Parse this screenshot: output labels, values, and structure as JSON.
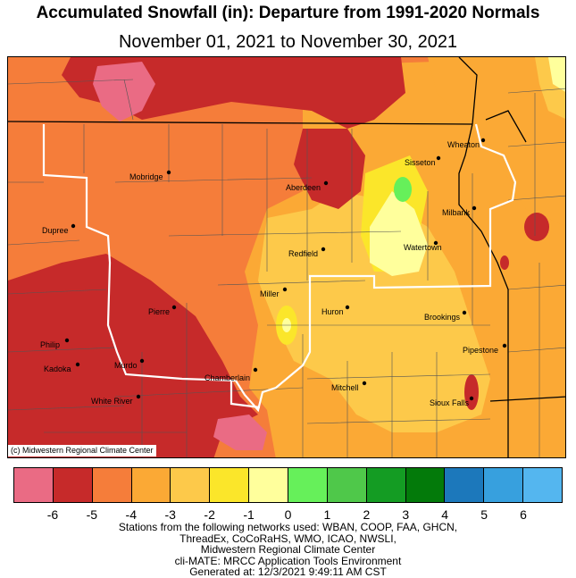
{
  "title": "Accumulated Snowfall (in): Departure from 1991-2020 Normals",
  "subtitle": "November 01, 2021 to November 30, 2021",
  "credit": "(c) Midwestern Regional Climate Center",
  "cities": [
    {
      "name": "Wheaton"
    },
    {
      "name": "Sisseton"
    },
    {
      "name": "Mobridge"
    },
    {
      "name": "Aberdeen"
    },
    {
      "name": "Milbank"
    },
    {
      "name": "Dupree"
    },
    {
      "name": "Redfield"
    },
    {
      "name": "Watertown"
    },
    {
      "name": "Miller"
    },
    {
      "name": "Huron"
    },
    {
      "name": "Pierre"
    },
    {
      "name": "Brookings"
    },
    {
      "name": "Philip"
    },
    {
      "name": "Pipestone"
    },
    {
      "name": "Murdo"
    },
    {
      "name": "Kadoka"
    },
    {
      "name": "Chamberlain"
    },
    {
      "name": "Mitchell"
    },
    {
      "name": "White River"
    },
    {
      "name": "Sioux Falls"
    }
  ],
  "legend": {
    "colors": [
      "#ea6b84",
      "#c62a2a",
      "#f57d3a",
      "#fba935",
      "#fdc94a",
      "#fbe62a",
      "#ffff9c",
      "#66f05a",
      "#4fc84a",
      "#149c23",
      "#037a0a",
      "#1c78bb",
      "#37a0de",
      "#54b6ef"
    ],
    "ticks": [
      "-6",
      "-5",
      "-4",
      "-3",
      "-2",
      "-1",
      "0",
      "1",
      "2",
      "3",
      "4",
      "5",
      "6"
    ]
  },
  "footer": {
    "line1": "Stations from the following networks used: WBAN, COOP, FAA, GHCN,",
    "line2": "ThreadEx, CoCoRaHS, WMO, ICAO, NWSLI,",
    "line3": "Midwestern Regional Climate Center",
    "line4": "cli-MATE: MRCC Application Tools Environment",
    "line5": "Generated at: 12/3/2021 9:49:11 AM CST"
  }
}
